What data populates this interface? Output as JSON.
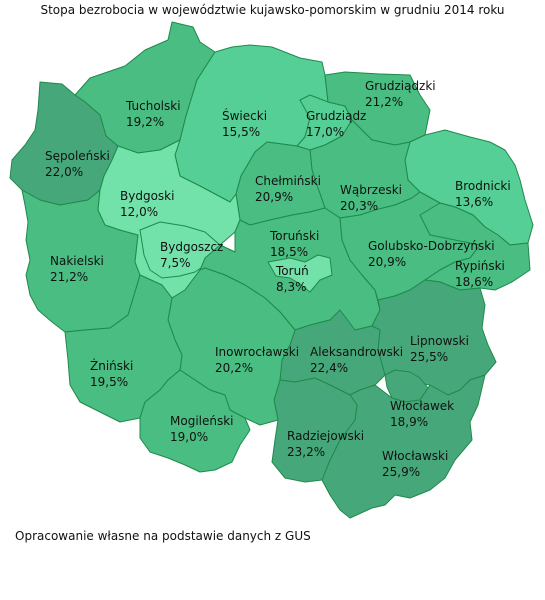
{
  "title": "Stopa bezrobocia w województwie kujawsko-pomorskim w grudniu 2014 roku",
  "source": "Opracowanie własne na podstawie danych z GUS",
  "colors": {
    "lightest": "#72e2aa",
    "light": "#55cf95",
    "medium": "#49bd82",
    "dark": "#46a87a",
    "border": "#1f8a4a"
  },
  "regions": [
    {
      "id": "sepolenski",
      "name": "Sępoleński",
      "value": "22,0%"
    },
    {
      "id": "tucholski",
      "name": "Tucholski",
      "value": "19,2%"
    },
    {
      "id": "swiecki",
      "name": "Świecki",
      "value": "15,5%"
    },
    {
      "id": "grudziadz",
      "name": "Grudziądz",
      "value": "17,0%"
    },
    {
      "id": "grudziadzki",
      "name": "Grudziądzki",
      "value": "21,2%"
    },
    {
      "id": "bydgoski",
      "name": "Bydgoski",
      "value": "12,0%"
    },
    {
      "id": "bydgoszcz",
      "name": "Bydgoszcz",
      "value": "7,5%"
    },
    {
      "id": "chelminski",
      "name": "Chełmiński",
      "value": "20,9%"
    },
    {
      "id": "wabrzeski",
      "name": "Wąbrzeski",
      "value": "20,3%"
    },
    {
      "id": "brodnicki",
      "name": "Brodnicki",
      "value": "13,6%"
    },
    {
      "id": "nakielski",
      "name": "Nakielski",
      "value": "21,2%"
    },
    {
      "id": "torunski",
      "name": "Toruński",
      "value": "18,5%"
    },
    {
      "id": "torun",
      "name": "Toruń",
      "value": "8,3%"
    },
    {
      "id": "golubsko",
      "name": "Golubsko-Dobrzyński",
      "value": "20,9%"
    },
    {
      "id": "rypinski",
      "name": "Rypiński",
      "value": "18,6%"
    },
    {
      "id": "lipnowski",
      "name": "Lipnowski",
      "value": "25,5%"
    },
    {
      "id": "aleksandrowski",
      "name": "Aleksandrowski",
      "value": "22,4%"
    },
    {
      "id": "inowroclawski",
      "name": "Inowrocławski",
      "value": "20,2%"
    },
    {
      "id": "zninski",
      "name": "Żniński",
      "value": "19,5%"
    },
    {
      "id": "mogilenski",
      "name": "Mogileński",
      "value": "19,0%"
    },
    {
      "id": "radziejowski",
      "name": "Radziejowski",
      "value": "23,2%"
    },
    {
      "id": "wloclawek",
      "name": "Włocławek",
      "value": "18,9%"
    },
    {
      "id": "wloclawski",
      "name": "Włocławski",
      "value": "25,9%"
    }
  ]
}
